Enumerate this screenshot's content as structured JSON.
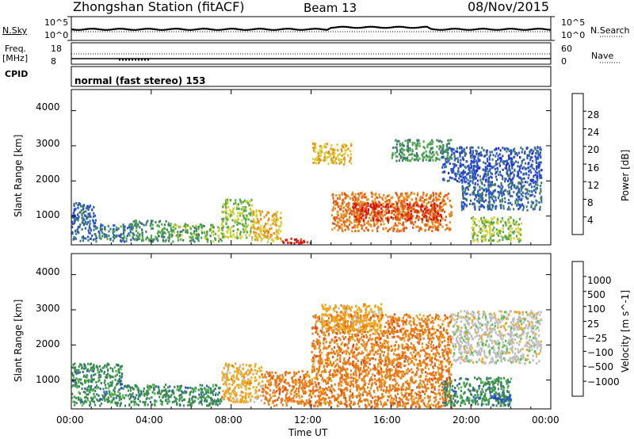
{
  "header": {
    "station": "Zhongshan Station (fitACF)",
    "beam": "Beam 13",
    "date": "08/Nov/2015"
  },
  "top_panels": {
    "nsky_label": "N.Sky",
    "nsky_ticks": [
      "10^5",
      "10^0"
    ],
    "nsearch_label": "N.Search",
    "nsearch_ticks": [
      "10^5",
      "10^0"
    ],
    "freq_label": "Freq.",
    "freq_unit": "[MHz]",
    "freq_ticks": [
      "18",
      "8"
    ],
    "nave_label": "Nave",
    "nave_ticks": [
      "60",
      "0"
    ],
    "cpid_label": "CPID",
    "cpid_value": "normal (fast stereo) 153"
  },
  "chart_data": [
    {
      "type": "heatmap",
      "title": "",
      "xlabel": "Time UT",
      "ylabel": "Slant Range [km]",
      "x_ticks": [
        "00:00",
        "04:00",
        "08:00",
        "12:00",
        "16:00",
        "20:00",
        "00:00"
      ],
      "xlim": [
        0,
        24
      ],
      "y_ticks": [
        1000,
        2000,
        3000,
        4000
      ],
      "ylim": [
        180,
        4600
      ],
      "colorbar": {
        "label": "Power [dB]",
        "ticks": [
          4,
          8,
          12,
          16,
          20,
          24,
          28
        ],
        "range": [
          0,
          32
        ],
        "colors": [
          "#1f2fe0",
          "#2b54c8",
          "#3f7a72",
          "#52a84a",
          "#d6d030",
          "#e88e1c",
          "#e35a14",
          "#d81010"
        ]
      },
      "patches": [
        {
          "t0": 0.0,
          "t1": 1.2,
          "r0": 300,
          "r1": 1400,
          "v": 8
        },
        {
          "t0": 1.2,
          "t1": 3.0,
          "r0": 300,
          "r1": 800,
          "v": 10
        },
        {
          "t0": 3.0,
          "t1": 5.0,
          "r0": 300,
          "r1": 900,
          "v": 12
        },
        {
          "t0": 5.0,
          "t1": 7.5,
          "r0": 300,
          "r1": 800,
          "v": 14
        },
        {
          "t0": 7.5,
          "t1": 9.0,
          "r0": 400,
          "r1": 1500,
          "v": 16
        },
        {
          "t0": 9.0,
          "t1": 10.5,
          "r0": 300,
          "r1": 1200,
          "v": 20
        },
        {
          "t0": 10.5,
          "t1": 12.0,
          "r0": 250,
          "r1": 400,
          "v": 28
        },
        {
          "t0": 12.0,
          "t1": 14.0,
          "r0": 2500,
          "r1": 3100,
          "v": 20
        },
        {
          "t0": 13.0,
          "t1": 19.0,
          "r0": 600,
          "r1": 1700,
          "v": 24
        },
        {
          "t0": 14.0,
          "t1": 18.5,
          "r0": 900,
          "r1": 1400,
          "v": 28
        },
        {
          "t0": 16.0,
          "t1": 19.0,
          "r0": 2600,
          "r1": 3200,
          "v": 12
        },
        {
          "t0": 18.5,
          "t1": 23.5,
          "r0": 2000,
          "r1": 3000,
          "v": 6
        },
        {
          "t0": 19.5,
          "t1": 23.5,
          "r0": 1200,
          "r1": 2000,
          "v": 8
        },
        {
          "t0": 20.0,
          "t1": 22.5,
          "r0": 300,
          "r1": 1000,
          "v": 16
        }
      ]
    },
    {
      "type": "heatmap",
      "title": "",
      "xlabel": "Time UT",
      "ylabel": "Slant Range [km]",
      "x_ticks": [
        "00:00",
        "04:00",
        "08:00",
        "12:00",
        "16:00",
        "20:00",
        "00:00"
      ],
      "xlim": [
        0,
        24
      ],
      "y_ticks": [
        1000,
        2000,
        3000,
        4000
      ],
      "ylim": [
        180,
        4600
      ],
      "colorbar": {
        "label": "Velocity [m s^-1]",
        "ticks": [
          "1000",
          "500",
          "100",
          "25",
          "−25",
          "−100",
          "−500",
          "−1000"
        ],
        "colors": [
          "#2032c8",
          "#2c5ab8",
          "#3a8a52",
          "#52c044",
          "#bdbdbd",
          "#f0a818",
          "#ea7a14",
          "#e24a16",
          "#dd1010"
        ]
      },
      "patches": [
        {
          "t0": 0.0,
          "t1": 2.5,
          "r0": 300,
          "r1": 1500,
          "v": "100"
        },
        {
          "t0": 2.5,
          "t1": 7.5,
          "r0": 300,
          "r1": 900,
          "v": "100"
        },
        {
          "t0": 7.5,
          "t1": 9.5,
          "r0": 400,
          "r1": 1500,
          "v": "-100"
        },
        {
          "t0": 9.5,
          "t1": 12.0,
          "r0": 300,
          "r1": 1300,
          "v": "-500"
        },
        {
          "t0": 12.0,
          "t1": 19.0,
          "r0": 250,
          "r1": 2900,
          "v": "-500"
        },
        {
          "t0": 12.5,
          "t1": 15.5,
          "r0": 2400,
          "r1": 3200,
          "v": "-100"
        },
        {
          "t0": 19.0,
          "t1": 23.5,
          "r0": 1500,
          "r1": 3000,
          "v": "25"
        },
        {
          "t0": 18.5,
          "t1": 22.0,
          "r0": 300,
          "r1": 1100,
          "v": "100"
        },
        {
          "t0": 21.0,
          "t1": 22.0,
          "r0": 300,
          "r1": 600,
          "v": "500"
        }
      ]
    }
  ]
}
